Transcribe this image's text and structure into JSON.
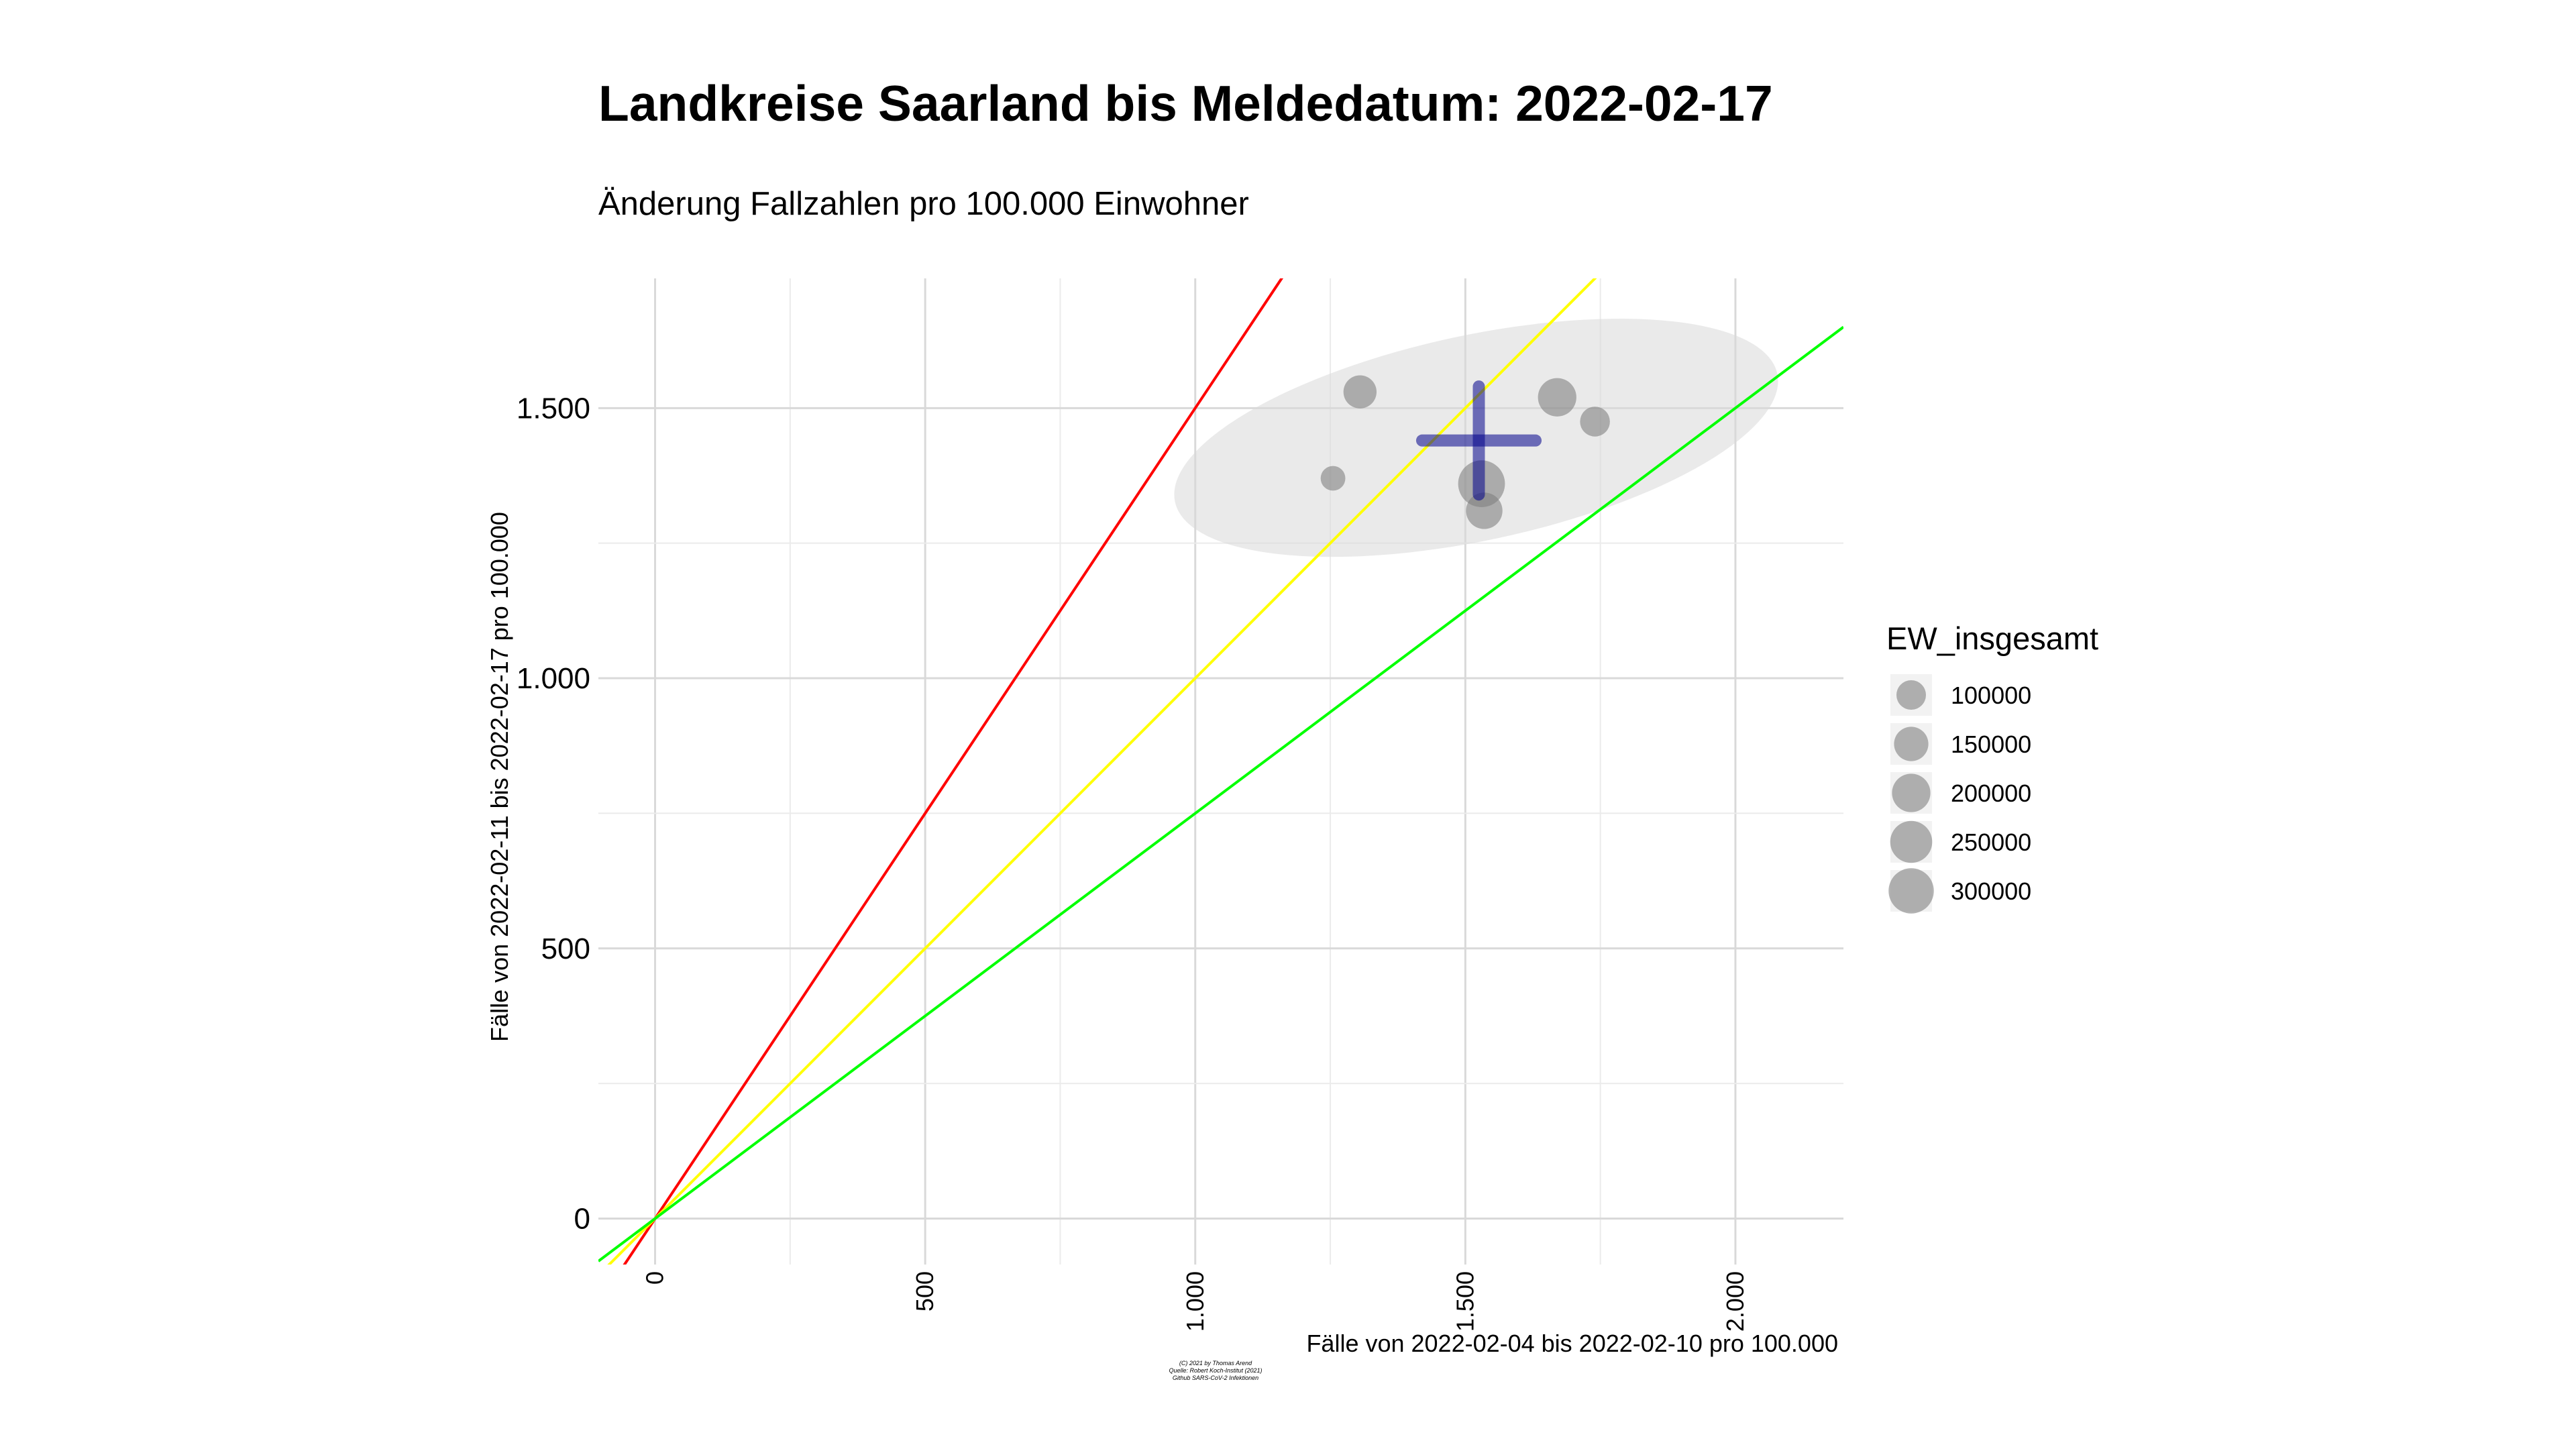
{
  "chart_data": {
    "type": "scatter",
    "title": "Landkreise Saarland bis Meldedatum: 2022-02-17",
    "subtitle": "Änderung Fallzahlen pro 100.000 Einwohner",
    "xlabel": "Fälle von 2022-02-04 bis 2022-02-10 pro 100.000",
    "ylabel": "Fälle von 2022-02-11 bis 2022-02-17 pro 100.000",
    "xlim": [
      -105,
      2200
    ],
    "ylim": [
      -85,
      1740
    ],
    "x_ticks": [
      0,
      500,
      1000,
      1500,
      2000
    ],
    "x_tick_labels": [
      "0",
      "500",
      "1.000",
      "1.500",
      "2.000"
    ],
    "y_ticks": [
      0,
      500,
      1000,
      1500
    ],
    "y_tick_labels": [
      "0",
      "500",
      "1.000",
      "1.500"
    ],
    "grid": true,
    "reference_lines": [
      {
        "slope": 1.5,
        "color": "#ff0000"
      },
      {
        "slope": 1.0,
        "color": "#ffff00"
      },
      {
        "slope": 0.75,
        "color": "#00ff00"
      }
    ],
    "points": [
      {
        "x": 1255,
        "y": 1370,
        "ew": 60000
      },
      {
        "x": 1305,
        "y": 1530,
        "ew": 136000
      },
      {
        "x": 1530,
        "y": 1360,
        "ew": 326000
      },
      {
        "x": 1670,
        "y": 1520,
        "ew": 200000
      },
      {
        "x": 1740,
        "y": 1475,
        "ew": 103000
      },
      {
        "x": 1535,
        "y": 1310,
        "ew": 175000
      }
    ],
    "mean_cross": {
      "x": 1525,
      "y": 1440,
      "x_range": [
        1420,
        1630
      ],
      "y_range": [
        1340,
        1540
      ],
      "color": "#00008b"
    },
    "ellipse": {
      "cx": 1520,
      "cy": 1445,
      "rx": 570,
      "ry": 190,
      "angle_deg": -12,
      "fill": "#d9d9d9"
    },
    "legend": {
      "title": "EW_insgesamt",
      "position": "right",
      "entries": [
        {
          "label": "100000",
          "value": 100000
        },
        {
          "label": "150000",
          "value": 150000
        },
        {
          "label": "200000",
          "value": 200000
        },
        {
          "label": "250000",
          "value": 250000
        },
        {
          "label": "300000",
          "value": 300000
        }
      ]
    },
    "caption": [
      "(C) 2021 by Thomas Arend",
      "Quelle: Robert Koch-Institut (2021)",
      "Github SARS-CoV-2 Infektionen"
    ]
  }
}
